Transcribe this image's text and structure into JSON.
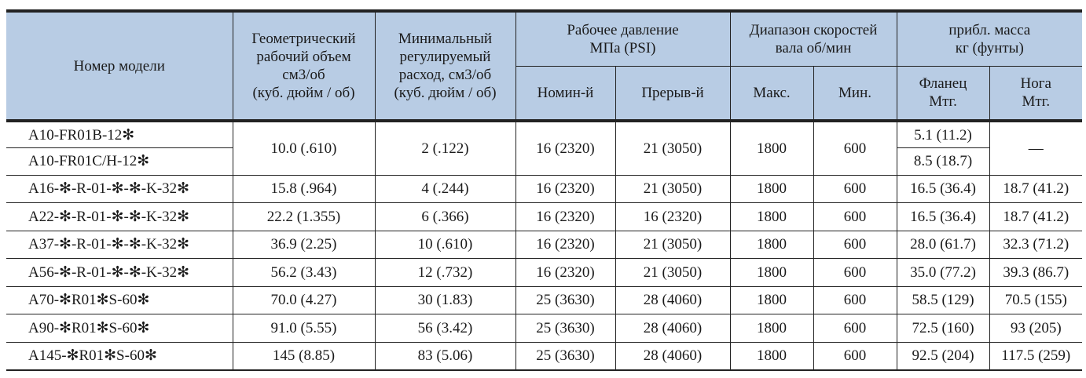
{
  "header": {
    "model": "Номер модели",
    "displacement": [
      "Геометрический",
      "рабочий объем",
      "см3/об",
      "(куб. дюйм / об)"
    ],
    "min_flow": [
      "Минимальный",
      "регулируемый",
      "расход, см3/об",
      "(куб. дюйм / об)"
    ],
    "pressure": [
      "Рабочее давление",
      "МПа (PSI)"
    ],
    "pressure_nominal": "Номин-й",
    "pressure_intermittent": "Прерыв-й",
    "speed": [
      "Диапазон скоростей",
      "вала об/мин"
    ],
    "speed_max": "Макс.",
    "speed_min": "Мин.",
    "mass": [
      "прибл. масса",
      "кг (фунты)"
    ],
    "mass_flange": [
      "Фланец",
      "Мтг."
    ],
    "mass_foot": [
      "Нога",
      "Мтг."
    ]
  },
  "a10": {
    "models": [
      "A10-FR01B-12✻",
      "A10-FR01C/H-12✻"
    ],
    "displacement": "10.0 (.610)",
    "min_flow": "2 (.122)",
    "nominal": "16 (2320)",
    "intermittent": "21 (3050)",
    "max": "1800",
    "min": "600",
    "flange": [
      "5.1 (11.2)",
      "8.5 (18.7)"
    ],
    "foot": "—"
  },
  "rows": [
    [
      "A16-✻-R-01-✻-✻-K-32✻",
      "15.8 (.964)",
      "4 (.244)",
      "16 (2320)",
      "21 (3050)",
      "1800",
      "600",
      "16.5 (36.4)",
      "18.7 (41.2)"
    ],
    [
      "A22-✻-R-01-✻-✻-K-32✻",
      "22.2 (1.355)",
      "6 (.366)",
      "16 (2320)",
      "16 (2320)",
      "1800",
      "600",
      "16.5 (36.4)",
      "18.7 (41.2)"
    ],
    [
      "A37-✻-R-01-✻-✻-K-32✻",
      "36.9 (2.25)",
      "10 (.610)",
      "16 (2320)",
      "21 (3050)",
      "1800",
      "600",
      "28.0 (61.7)",
      "32.3 (71.2)"
    ],
    [
      "A56-✻-R-01-✻-✻-K-32✻",
      "56.2 (3.43)",
      "12 (.732)",
      "16 (2320)",
      "21 (3050)",
      "1800",
      "600",
      "35.0 (77.2)",
      "39.3 (86.7)"
    ],
    [
      "A70-✻R01✻S-60✻",
      "70.0 (4.27)",
      "30 (1.83)",
      "25 (3630)",
      "28 (4060)",
      "1800",
      "600",
      "58.5 (129)",
      "70.5 (155)"
    ],
    [
      "A90-✻R01✻S-60✻",
      "91.0 (5.55)",
      "56 (3.42)",
      "25 (3630)",
      "28 (4060)",
      "1800",
      "600",
      "72.5 (160)",
      "93 (205)"
    ],
    [
      "A145-✻R01✻S-60✻",
      "145 (8.85)",
      "83 (5.06)",
      "25 (3630)",
      "28 (4060)",
      "1800",
      "600",
      "92.5 (204)",
      "117.5 (259)"
    ]
  ]
}
